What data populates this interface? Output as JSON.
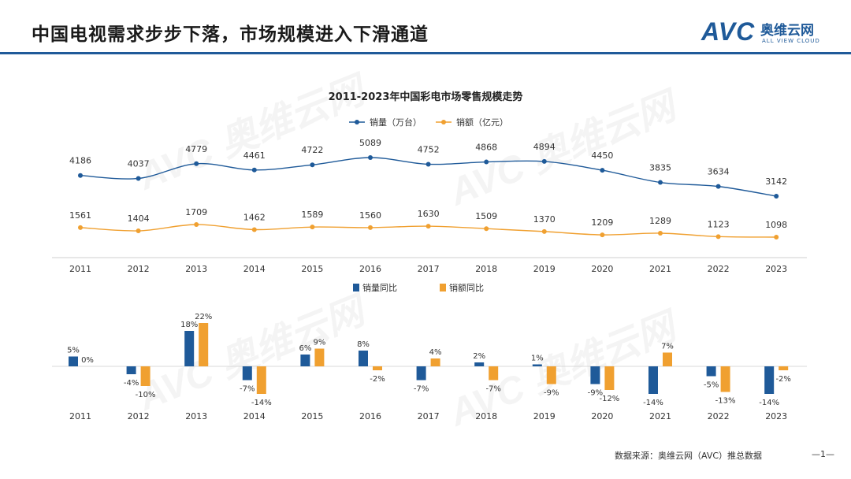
{
  "header": {
    "title": "中国电视需求步步下落，市场规模进入下滑通道",
    "logo_text": "AVC",
    "logo_cn": "奥维云网",
    "logo_en": "ALL VIEW CLOUD"
  },
  "footer": {
    "source": "数据来源：奥维云网（AVC）推总数据",
    "page": "—1—"
  },
  "colors": {
    "blue": "#1f5a99",
    "orange": "#f0a030",
    "header_rule": "#1f5a99"
  },
  "chart_data": [
    {
      "type": "line",
      "title": "2011-2023年中国彩电市场零售规模走势",
      "legend_position": "top",
      "categories": [
        "2011",
        "2012",
        "2013",
        "2014",
        "2015",
        "2016",
        "2017",
        "2018",
        "2019",
        "2020",
        "2021",
        "2022",
        "2023"
      ],
      "series": [
        {
          "name": "销量（万台）",
          "color": "#1f5a99",
          "values": [
            4186,
            4037,
            4779,
            4461,
            4722,
            5089,
            4752,
            4868,
            4894,
            4450,
            3835,
            3634,
            3142
          ]
        },
        {
          "name": "销额（亿元）",
          "color": "#f0a030",
          "values": [
            1561,
            1404,
            1709,
            1462,
            1589,
            1560,
            1630,
            1509,
            1370,
            1209,
            1289,
            1123,
            1098
          ]
        }
      ]
    },
    {
      "type": "bar",
      "legend_position": "top",
      "categories": [
        "2011",
        "2012",
        "2013",
        "2014",
        "2015",
        "2016",
        "2017",
        "2018",
        "2019",
        "2020",
        "2021",
        "2022",
        "2023"
      ],
      "series": [
        {
          "name": "销量同比",
          "color": "#1f5a99",
          "values": [
            5,
            -4,
            18,
            -7,
            6,
            8,
            -7,
            2,
            1,
            -9,
            -14,
            -5,
            -14
          ]
        },
        {
          "name": "销额同比",
          "color": "#f0a030",
          "values": [
            0,
            -10,
            22,
            -14,
            9,
            -2,
            4,
            -7,
            -9,
            -12,
            7,
            -13,
            -2
          ]
        }
      ]
    }
  ]
}
